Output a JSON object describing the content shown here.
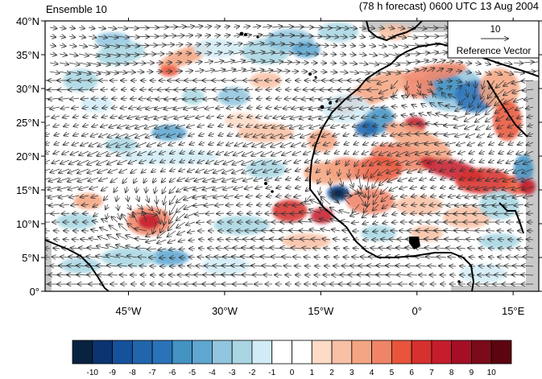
{
  "header": {
    "left_title": "Ensemble 10",
    "right_title": "(78 h forecast) 0600 UTC 13 Aug 2004"
  },
  "reference_vector": {
    "magnitude": "10",
    "label": "Reference Vector"
  },
  "map": {
    "lat_labels": [
      "40°N",
      "35°N",
      "30°N",
      "25°N",
      "20°N",
      "15°N",
      "10°N",
      "5°N",
      "0°"
    ],
    "lon_labels": [
      "45°W",
      "30°W",
      "15°W",
      "0°",
      "15°E"
    ],
    "lat_values": [
      40,
      35,
      30,
      25,
      20,
      15,
      10,
      5,
      0
    ],
    "lon_values": [
      -45,
      -30,
      -15,
      0,
      15
    ],
    "extent": {
      "lon_min": -58,
      "lon_max": 19,
      "lat_min": 0,
      "lat_max": 40
    },
    "land_mask_color": "#c8c8c8",
    "coastline_color": "#000000",
    "vector_color": "#333333"
  },
  "colorbar": {
    "labels": [
      "-10",
      "-9",
      "-8",
      "-7",
      "-6",
      "-5",
      "-4",
      "-3",
      "-2",
      "-1",
      "0",
      "1",
      "2",
      "3",
      "4",
      "5",
      "6",
      "7",
      "8",
      "9",
      "10"
    ],
    "colors": [
      "#08233f",
      "#0b3470",
      "#16519b",
      "#2166ac",
      "#2b73b8",
      "#4393c3",
      "#5fa6d1",
      "#92c5de",
      "#a9d6e3",
      "#d1ecf6",
      "#ffffff",
      "#ffffff",
      "#fddbc7",
      "#f8c0a5",
      "#f4a582",
      "#ef8468",
      "#e8553c",
      "#d6312f",
      "#c51d2c",
      "#a50f25",
      "#7b0b1a",
      "#5c0410"
    ]
  }
}
